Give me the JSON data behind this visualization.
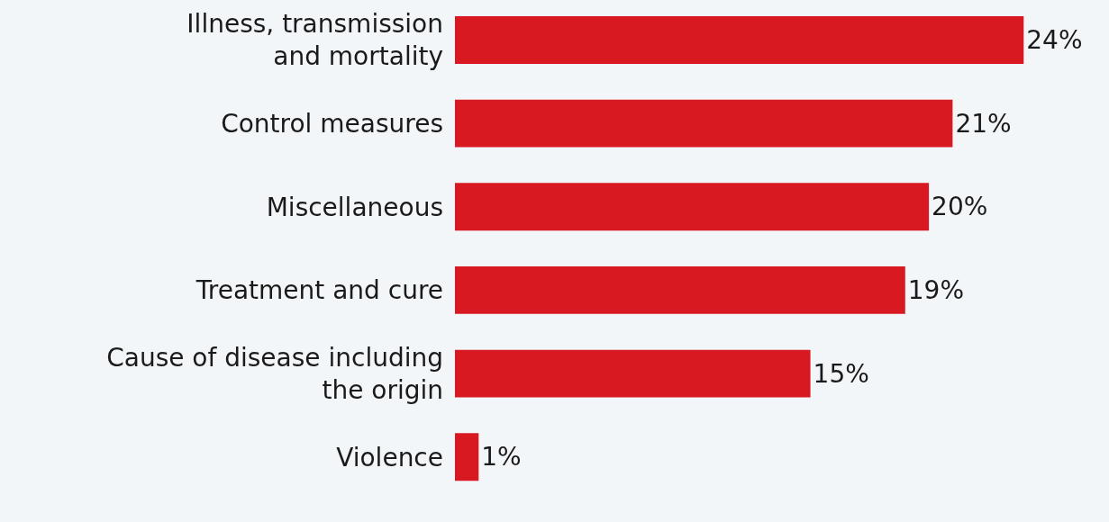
{
  "chart_data": {
    "type": "bar",
    "orientation": "horizontal",
    "categories": [
      "Illness, transmission\nand mortality",
      "Control measures",
      "Miscellaneous",
      "Treatment and cure",
      "Cause of disease including\nthe origin",
      "Violence"
    ],
    "values": [
      24,
      21,
      20,
      19,
      15,
      1
    ],
    "value_labels": [
      "24%",
      "21%",
      "20%",
      "19%",
      "15%",
      "1%"
    ],
    "color": "#d81921",
    "xlim": [
      0,
      27.6
    ],
    "tick_labels": "y",
    "grid": false,
    "legend": false
  }
}
